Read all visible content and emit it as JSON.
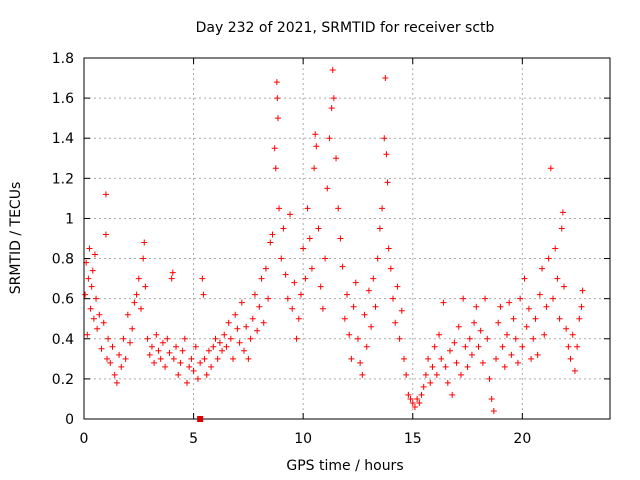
{
  "chart_data": {
    "type": "scatter",
    "title": "Day 232 of 2021, SRMTID for receiver sctb",
    "xlabel": "GPS time / hours",
    "ylabel": "SRMTID / TECUs",
    "xlim": [
      0,
      24
    ],
    "ylim": [
      0,
      1.8
    ],
    "x_ticks": [
      0,
      5,
      10,
      15,
      20
    ],
    "x_tick_labels": [
      "0",
      "5",
      "10",
      "15",
      "20"
    ],
    "y_ticks": [
      0,
      0.2,
      0.4,
      0.6,
      0.8,
      1,
      1.2,
      1.4,
      1.6,
      1.8
    ],
    "y_tick_labels": [
      "0",
      "0.2",
      "0.4",
      "0.6",
      "0.8",
      "1",
      "1.2",
      "1.4",
      "1.6",
      "1.8"
    ],
    "grid": true,
    "marker": "plus",
    "colors": {
      "points": "#ff0000",
      "special": "#dd0000",
      "grid": "#aaaaaa",
      "axis": "#000000"
    },
    "special_marker": {
      "x": 5.3,
      "y": 0.0,
      "shape": "square"
    },
    "series": [
      {
        "name": "SRMTID",
        "points": [
          [
            0.05,
            0.62
          ],
          [
            0.1,
            0.78
          ],
          [
            0.15,
            0.42
          ],
          [
            0.2,
            0.7
          ],
          [
            0.25,
            0.85
          ],
          [
            0.3,
            0.55
          ],
          [
            0.35,
            0.66
          ],
          [
            0.4,
            0.74
          ],
          [
            0.45,
            0.5
          ],
          [
            0.5,
            0.82
          ],
          [
            0.55,
            0.6
          ],
          [
            0.6,
            0.45
          ],
          [
            0.7,
            0.52
          ],
          [
            0.8,
            0.35
          ],
          [
            0.9,
            0.48
          ],
          [
            1.0,
            0.92
          ],
          [
            1.0,
            1.12
          ],
          [
            1.05,
            0.3
          ],
          [
            1.1,
            0.4
          ],
          [
            1.2,
            0.28
          ],
          [
            1.3,
            0.36
          ],
          [
            1.4,
            0.22
          ],
          [
            1.5,
            0.18
          ],
          [
            1.6,
            0.32
          ],
          [
            1.7,
            0.26
          ],
          [
            1.8,
            0.4
          ],
          [
            1.9,
            0.3
          ],
          [
            2.0,
            0.52
          ],
          [
            2.1,
            0.38
          ],
          [
            2.2,
            0.45
          ],
          [
            2.3,
            0.58
          ],
          [
            2.4,
            0.62
          ],
          [
            2.5,
            0.7
          ],
          [
            2.6,
            0.55
          ],
          [
            2.7,
            0.8
          ],
          [
            2.75,
            0.88
          ],
          [
            2.8,
            0.66
          ],
          [
            2.9,
            0.4
          ],
          [
            3.0,
            0.32
          ],
          [
            3.1,
            0.36
          ],
          [
            3.2,
            0.28
          ],
          [
            3.3,
            0.42
          ],
          [
            3.4,
            0.34
          ],
          [
            3.5,
            0.3
          ],
          [
            3.6,
            0.38
          ],
          [
            3.7,
            0.26
          ],
          [
            3.8,
            0.4
          ],
          [
            3.9,
            0.33
          ],
          [
            4.0,
            0.7
          ],
          [
            4.05,
            0.73
          ],
          [
            4.1,
            0.3
          ],
          [
            4.2,
            0.36
          ],
          [
            4.3,
            0.22
          ],
          [
            4.4,
            0.28
          ],
          [
            4.5,
            0.34
          ],
          [
            4.6,
            0.4
          ],
          [
            4.7,
            0.18
          ],
          [
            4.8,
            0.26
          ],
          [
            4.9,
            0.3
          ],
          [
            5.0,
            0.24
          ],
          [
            5.1,
            0.36
          ],
          [
            5.2,
            0.2
          ],
          [
            5.3,
            0.28
          ],
          [
            5.4,
            0.7
          ],
          [
            5.45,
            0.62
          ],
          [
            5.5,
            0.3
          ],
          [
            5.6,
            0.22
          ],
          [
            5.7,
            0.34
          ],
          [
            5.8,
            0.26
          ],
          [
            5.9,
            0.36
          ],
          [
            6.0,
            0.4
          ],
          [
            6.1,
            0.3
          ],
          [
            6.2,
            0.38
          ],
          [
            6.3,
            0.34
          ],
          [
            6.4,
            0.42
          ],
          [
            6.5,
            0.36
          ],
          [
            6.6,
            0.48
          ],
          [
            6.7,
            0.4
          ],
          [
            6.8,
            0.3
          ],
          [
            6.9,
            0.52
          ],
          [
            7.0,
            0.45
          ],
          [
            7.1,
            0.38
          ],
          [
            7.2,
            0.58
          ],
          [
            7.3,
            0.34
          ],
          [
            7.4,
            0.46
          ],
          [
            7.5,
            0.3
          ],
          [
            7.6,
            0.4
          ],
          [
            7.7,
            0.5
          ],
          [
            7.8,
            0.62
          ],
          [
            7.9,
            0.44
          ],
          [
            8.0,
            0.56
          ],
          [
            8.1,
            0.7
          ],
          [
            8.2,
            0.48
          ],
          [
            8.3,
            0.75
          ],
          [
            8.4,
            0.6
          ],
          [
            8.5,
            0.88
          ],
          [
            8.6,
            0.92
          ],
          [
            8.7,
            1.35
          ],
          [
            8.75,
            1.25
          ],
          [
            8.8,
            1.68
          ],
          [
            8.82,
            1.6
          ],
          [
            8.85,
            1.5
          ],
          [
            8.9,
            1.05
          ],
          [
            9.0,
            0.8
          ],
          [
            9.1,
            0.95
          ],
          [
            9.2,
            0.72
          ],
          [
            9.3,
            0.6
          ],
          [
            9.4,
            1.02
          ],
          [
            9.5,
            0.55
          ],
          [
            9.6,
            0.68
          ],
          [
            9.7,
            0.4
          ],
          [
            9.8,
            0.5
          ],
          [
            9.9,
            0.62
          ],
          [
            10.0,
            0.85
          ],
          [
            10.1,
            0.7
          ],
          [
            10.2,
            1.05
          ],
          [
            10.3,
            0.9
          ],
          [
            10.4,
            0.75
          ],
          [
            10.5,
            1.25
          ],
          [
            10.55,
            1.42
          ],
          [
            10.6,
            1.36
          ],
          [
            10.7,
            0.95
          ],
          [
            10.8,
            0.66
          ],
          [
            10.9,
            0.55
          ],
          [
            11.0,
            0.8
          ],
          [
            11.1,
            1.15
          ],
          [
            11.2,
            1.4
          ],
          [
            11.3,
            1.55
          ],
          [
            11.35,
            1.74
          ],
          [
            11.4,
            1.6
          ],
          [
            11.5,
            1.3
          ],
          [
            11.6,
            1.05
          ],
          [
            11.7,
            0.9
          ],
          [
            11.8,
            0.76
          ],
          [
            11.9,
            0.5
          ],
          [
            12.0,
            0.62
          ],
          [
            12.1,
            0.42
          ],
          [
            12.2,
            0.3
          ],
          [
            12.3,
            0.56
          ],
          [
            12.4,
            0.68
          ],
          [
            12.5,
            0.4
          ],
          [
            12.6,
            0.28
          ],
          [
            12.7,
            0.22
          ],
          [
            12.8,
            0.52
          ],
          [
            12.9,
            0.36
          ],
          [
            13.0,
            0.64
          ],
          [
            13.1,
            0.46
          ],
          [
            13.2,
            0.7
          ],
          [
            13.3,
            0.56
          ],
          [
            13.4,
            0.8
          ],
          [
            13.5,
            0.95
          ],
          [
            13.6,
            1.05
          ],
          [
            13.7,
            1.4
          ],
          [
            13.75,
            1.7
          ],
          [
            13.8,
            1.32
          ],
          [
            13.85,
            1.18
          ],
          [
            13.9,
            0.85
          ],
          [
            14.0,
            0.75
          ],
          [
            14.1,
            0.6
          ],
          [
            14.2,
            0.48
          ],
          [
            14.3,
            0.66
          ],
          [
            14.4,
            0.4
          ],
          [
            14.5,
            0.54
          ],
          [
            14.6,
            0.3
          ],
          [
            14.7,
            0.22
          ],
          [
            14.8,
            0.12
          ],
          [
            14.9,
            0.1
          ],
          [
            15.0,
            0.08
          ],
          [
            15.1,
            0.06
          ],
          [
            15.2,
            0.1
          ],
          [
            15.3,
            0.08
          ],
          [
            15.4,
            0.12
          ],
          [
            15.5,
            0.16
          ],
          [
            15.6,
            0.22
          ],
          [
            15.7,
            0.3
          ],
          [
            15.8,
            0.18
          ],
          [
            15.9,
            0.26
          ],
          [
            16.0,
            0.36
          ],
          [
            16.1,
            0.22
          ],
          [
            16.2,
            0.42
          ],
          [
            16.3,
            0.3
          ],
          [
            16.4,
            0.58
          ],
          [
            16.5,
            0.26
          ],
          [
            16.6,
            0.18
          ],
          [
            16.7,
            0.34
          ],
          [
            16.8,
            0.12
          ],
          [
            16.9,
            0.38
          ],
          [
            17.0,
            0.28
          ],
          [
            17.1,
            0.46
          ],
          [
            17.2,
            0.22
          ],
          [
            17.3,
            0.6
          ],
          [
            17.4,
            0.36
          ],
          [
            17.5,
            0.26
          ],
          [
            17.6,
            0.4
          ],
          [
            17.7,
            0.32
          ],
          [
            17.8,
            0.48
          ],
          [
            17.9,
            0.56
          ],
          [
            18.0,
            0.36
          ],
          [
            18.1,
            0.44
          ],
          [
            18.2,
            0.28
          ],
          [
            18.3,
            0.6
          ],
          [
            18.4,
            0.4
          ],
          [
            18.5,
            0.2
          ],
          [
            18.6,
            0.1
          ],
          [
            18.7,
            0.04
          ],
          [
            18.8,
            0.3
          ],
          [
            18.9,
            0.48
          ],
          [
            19.0,
            0.56
          ],
          [
            19.1,
            0.36
          ],
          [
            19.2,
            0.26
          ],
          [
            19.3,
            0.42
          ],
          [
            19.4,
            0.58
          ],
          [
            19.5,
            0.32
          ],
          [
            19.6,
            0.5
          ],
          [
            19.7,
            0.4
          ],
          [
            19.8,
            0.28
          ],
          [
            19.9,
            0.6
          ],
          [
            20.0,
            0.36
          ],
          [
            20.1,
            0.7
          ],
          [
            20.2,
            0.46
          ],
          [
            20.3,
            0.55
          ],
          [
            20.4,
            0.3
          ],
          [
            20.5,
            0.4
          ],
          [
            20.6,
            0.5
          ],
          [
            20.7,
            0.32
          ],
          [
            20.8,
            0.62
          ],
          [
            20.9,
            0.75
          ],
          [
            21.0,
            0.42
          ],
          [
            21.1,
            0.56
          ],
          [
            21.2,
            0.8
          ],
          [
            21.3,
            1.25
          ],
          [
            21.4,
            0.6
          ],
          [
            21.5,
            0.85
          ],
          [
            21.6,
            0.7
          ],
          [
            21.7,
            0.5
          ],
          [
            21.8,
            0.95
          ],
          [
            21.85,
            1.03
          ],
          [
            21.9,
            0.66
          ],
          [
            22.0,
            0.45
          ],
          [
            22.1,
            0.36
          ],
          [
            22.2,
            0.3
          ],
          [
            22.3,
            0.42
          ],
          [
            22.4,
            0.24
          ],
          [
            22.5,
            0.36
          ],
          [
            22.6,
            0.5
          ],
          [
            22.7,
            0.56
          ],
          [
            22.75,
            0.64
          ]
        ]
      }
    ]
  }
}
